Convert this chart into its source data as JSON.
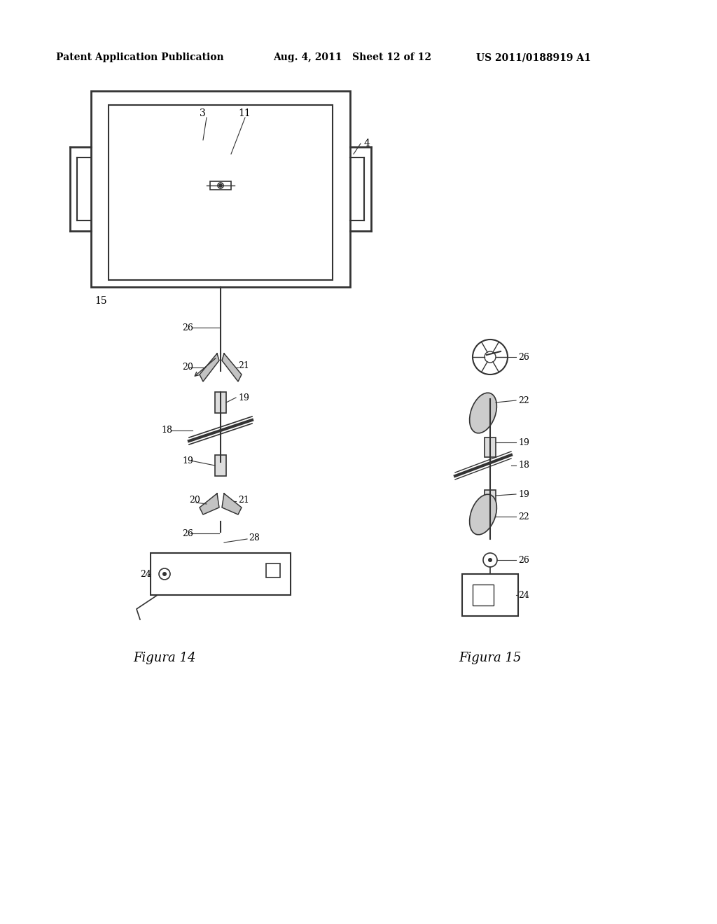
{
  "bg_color": "#ffffff",
  "header_left": "Patent Application Publication",
  "header_mid": "Aug. 4, 2011   Sheet 12 of 12",
  "header_right": "US 2011/0188919 A1",
  "fig14_label": "Figura 14",
  "fig15_label": "Figura 15"
}
